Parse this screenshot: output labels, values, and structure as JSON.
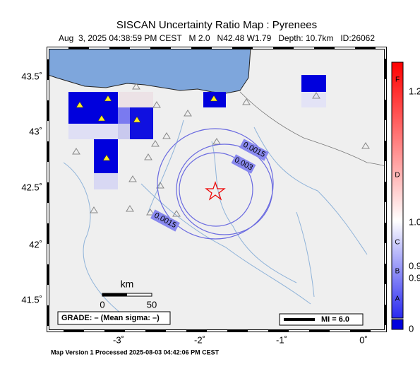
{
  "title": "SISCAN Uncertainty Ratio Map : Pyrenees",
  "subtitle": "Aug  3, 2025 04:38:59 PM CEST   M 2.0   N42.48 W1.79   Depth: 10.7km   ID:26062",
  "latitude_labels": [
    "43.5˚",
    "43˚",
    "42.5˚",
    "42˚",
    "41.5˚"
  ],
  "longitude_labels": [
    "-3˚",
    "-2˚",
    "-1˚",
    "0˚"
  ],
  "contour_labels": [
    "0.0015",
    "0.003",
    "0.0015"
  ],
  "scale_bar": {
    "unit": "km",
    "ticks": [
      "0",
      "50"
    ]
  },
  "grade": "GRADE: – (Mean sigma: –)",
  "legend": "MI = 6.0",
  "colorbar": {
    "grades": [
      "F",
      "D",
      "C",
      "B",
      "A"
    ],
    "labels": [
      "1.2",
      "1.0",
      "0.9",
      "0.9",
      "0"
    ]
  },
  "footer": "Map Version 1 Processed 2025-08-03 04:42:06 PM CEST"
}
